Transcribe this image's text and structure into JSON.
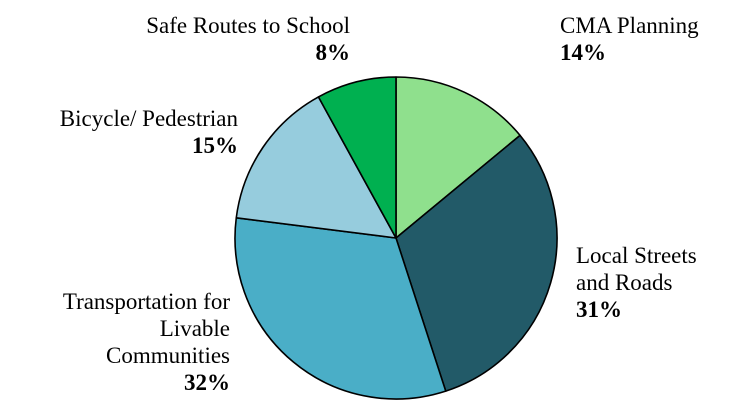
{
  "chart_data": {
    "type": "pie",
    "title": "",
    "slices": [
      {
        "label": "CMA Planning",
        "value": 14,
        "display": "14%",
        "color": "#8fe08d"
      },
      {
        "label": "Local Streets\nand Roads",
        "value": 31,
        "display": "31%",
        "color": "#225a68"
      },
      {
        "label": "Transportation for\nLivable\nCommunities",
        "value": 32,
        "display": "32%",
        "color": "#4aaec7"
      },
      {
        "label": "Bicycle/ Pedestrian",
        "value": 15,
        "display": "15%",
        "color": "#96ccdd"
      },
      {
        "label": "Safe Routes to School",
        "value": 8,
        "display": "8%",
        "color": "#00b050"
      }
    ],
    "start_angle": "12 o'clock",
    "direction": "clockwise"
  }
}
